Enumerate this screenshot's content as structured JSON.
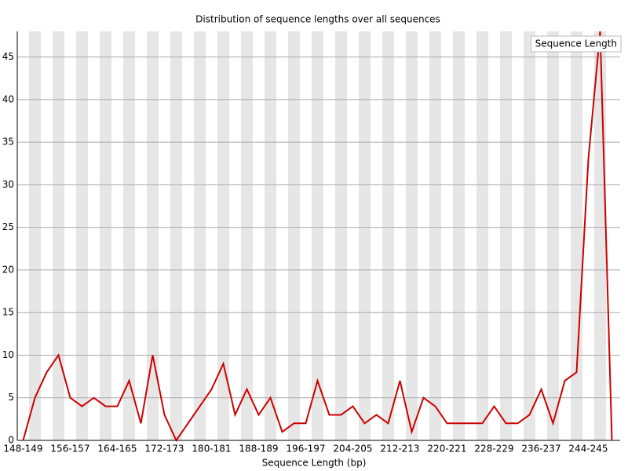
{
  "chart_data": {
    "type": "line",
    "title": "Distribution of sequence lengths over all sequences",
    "x_label": "Sequence Length (bp)",
    "categories": [
      "148-149",
      null,
      null,
      null,
      "156-157",
      null,
      null,
      null,
      "164-165",
      null,
      null,
      null,
      "172-173",
      null,
      null,
      null,
      "180-181",
      null,
      null,
      null,
      "188-189",
      null,
      null,
      null,
      "196-197",
      null,
      null,
      null,
      "204-205",
      null,
      null,
      null,
      "212-213",
      null,
      null,
      null,
      "220-221",
      null,
      null,
      null,
      "228-229",
      null,
      null,
      null,
      "236-237",
      null,
      null,
      null,
      "244-245",
      null,
      null
    ],
    "series": [
      {
        "name": "Sequence Length",
        "color": "#cc0000",
        "values": [
          0,
          5,
          8,
          10,
          5,
          4,
          5,
          4,
          4,
          7,
          2,
          10,
          3,
          0,
          2,
          4,
          6,
          9,
          3,
          6,
          3,
          5,
          1,
          2,
          2,
          7,
          3,
          3,
          4,
          2,
          3,
          2,
          7,
          1,
          5,
          4,
          2,
          2,
          2,
          2,
          4,
          2,
          2,
          3,
          6,
          2,
          7,
          8,
          33,
          48,
          0
        ]
      }
    ],
    "ylim": [
      0,
      48
    ],
    "yticks": [
      0,
      5,
      10,
      15,
      20,
      25,
      30,
      35,
      40,
      45
    ],
    "grid": true,
    "legend": "top-right"
  }
}
